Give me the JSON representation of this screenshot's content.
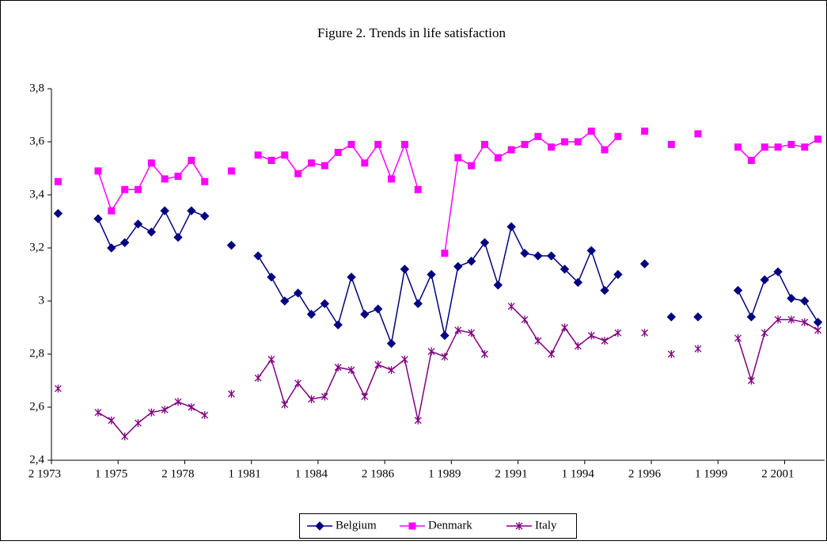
{
  "chart_data": {
    "type": "line",
    "title": "Figure 2. Trends in life satisfaction",
    "categories": [
      "2 1973",
      null,
      null,
      null,
      null,
      "1 1975",
      null,
      null,
      null,
      null,
      "2 1978",
      null,
      null,
      null,
      null,
      "1 1981",
      null,
      null,
      null,
      null,
      "1 1984",
      null,
      null,
      null,
      null,
      "2 1986",
      null,
      null,
      null,
      null,
      "1 1989",
      null,
      null,
      null,
      null,
      "2 1991",
      null,
      null,
      null,
      null,
      "1 1994",
      null,
      null,
      null,
      null,
      "2 1996",
      null,
      null,
      null,
      null,
      "1 1999",
      null,
      null,
      null,
      null,
      "2 2001",
      null,
      null
    ],
    "series": [
      {
        "name": "Belgium",
        "color": "#000080",
        "marker": "diamond",
        "values": [
          3.33,
          null,
          null,
          3.31,
          3.2,
          3.22,
          3.29,
          3.26,
          3.34,
          3.24,
          3.34,
          3.32,
          null,
          3.21,
          null,
          3.17,
          3.09,
          3.0,
          3.03,
          2.95,
          2.99,
          2.91,
          3.09,
          2.95,
          2.97,
          2.84,
          3.12,
          2.99,
          3.1,
          2.87,
          3.13,
          3.15,
          3.22,
          3.06,
          3.28,
          3.18,
          3.17,
          3.17,
          3.12,
          3.07,
          3.19,
          3.04,
          3.1,
          null,
          3.14,
          null,
          2.94,
          null,
          2.94,
          null,
          null,
          3.04,
          2.94,
          3.08,
          3.11,
          3.01,
          3.0,
          2.92
        ]
      },
      {
        "name": "Denmark",
        "color": "#ff00ff",
        "marker": "square",
        "values": [
          3.45,
          null,
          null,
          3.49,
          3.34,
          3.42,
          3.42,
          3.52,
          3.46,
          3.47,
          3.53,
          3.45,
          null,
          3.49,
          null,
          3.55,
          3.53,
          3.55,
          3.48,
          3.52,
          3.51,
          3.56,
          3.59,
          3.52,
          3.59,
          3.46,
          3.59,
          3.42,
          null,
          3.18,
          3.54,
          3.51,
          3.59,
          3.54,
          3.57,
          3.59,
          3.62,
          3.58,
          3.6,
          3.6,
          3.64,
          3.57,
          3.62,
          null,
          3.64,
          null,
          3.59,
          null,
          3.63,
          null,
          null,
          3.58,
          3.53,
          3.58,
          3.58,
          3.59,
          3.58,
          3.61
        ]
      },
      {
        "name": "Italy",
        "color": "#800080",
        "marker": "asterisk",
        "values": [
          2.67,
          null,
          null,
          2.58,
          2.55,
          2.49,
          2.54,
          2.58,
          2.59,
          2.62,
          2.6,
          2.57,
          null,
          2.65,
          null,
          2.71,
          2.78,
          2.61,
          2.69,
          2.63,
          2.64,
          2.75,
          2.74,
          2.64,
          2.76,
          2.74,
          2.78,
          2.55,
          2.81,
          2.79,
          2.89,
          2.88,
          2.8,
          null,
          2.98,
          2.93,
          2.85,
          2.8,
          2.9,
          2.83,
          2.87,
          2.85,
          2.88,
          null,
          2.88,
          null,
          2.8,
          null,
          2.82,
          null,
          null,
          2.86,
          2.7,
          2.88,
          2.93,
          2.93,
          2.92,
          2.89
        ]
      }
    ],
    "ylim": [
      2.4,
      3.8
    ],
    "yticks": [
      {
        "value": 2.4,
        "label": "2,4"
      },
      {
        "value": 2.6,
        "label": "2,6"
      },
      {
        "value": 2.8,
        "label": "2,8"
      },
      3,
      {
        "value": 3.2,
        "label": "3,2"
      },
      {
        "value": 3.4,
        "label": "3,4"
      },
      {
        "value": 3.6,
        "label": "3,6"
      },
      {
        "value": 3.8,
        "label": "3,8"
      }
    ],
    "legend": "bottom"
  }
}
